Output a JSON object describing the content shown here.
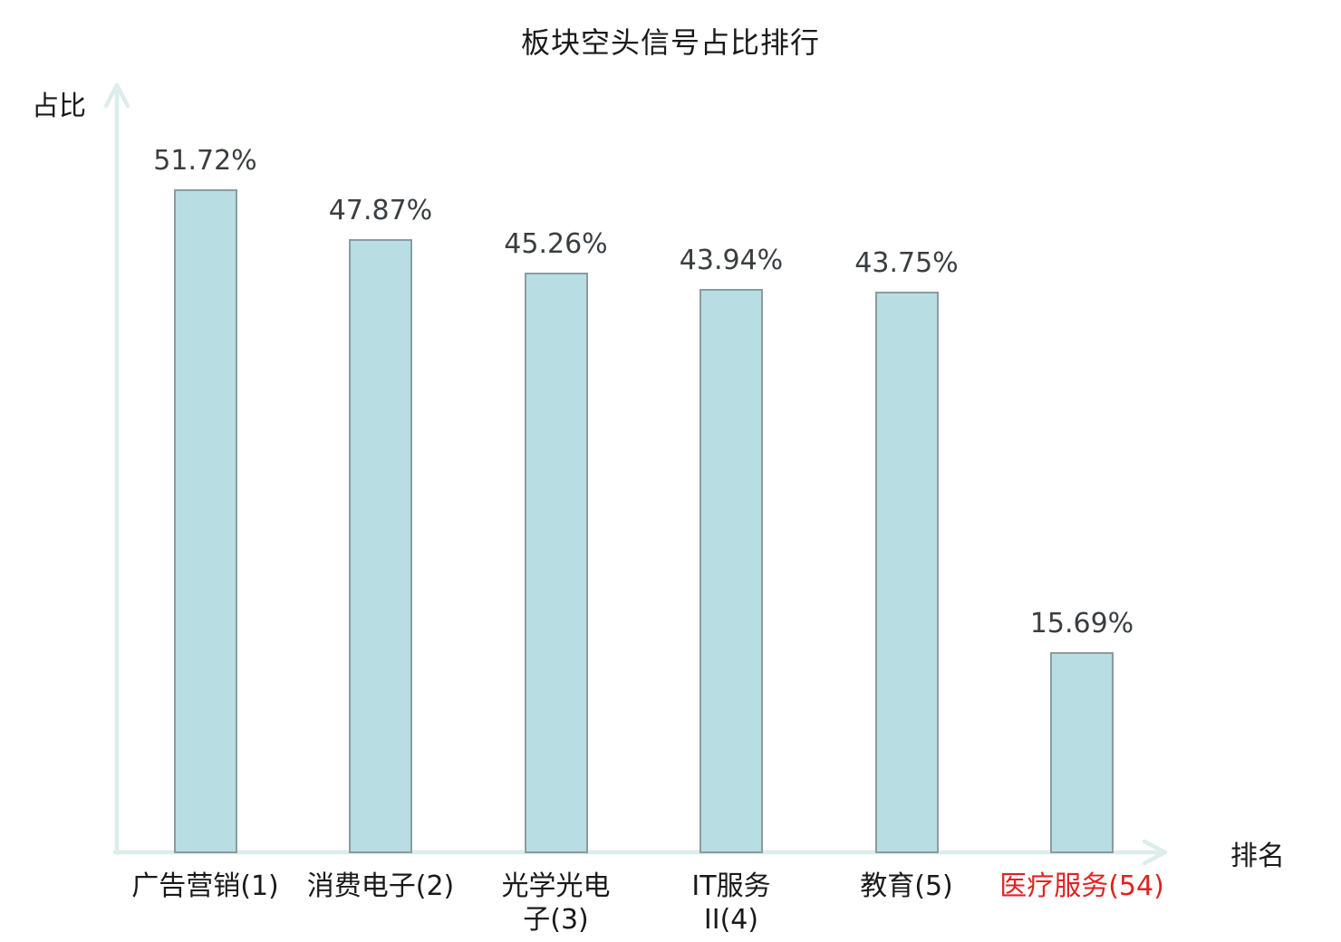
{
  "chart_data": {
    "type": "bar",
    "title": "板块空头信号占比排行",
    "xlabel": "排名",
    "ylabel": "占比",
    "categories": [
      "广告营销(1)",
      "消费电子(2)",
      "光学光电子(3)",
      "IT服务II(4)",
      "教育(5)",
      "医疗服务(54)"
    ],
    "category_display": [
      "广告营销(1)",
      "消费电子(2)",
      "光学光电\n子(3)",
      "IT服务\nII(4)",
      "教育(5)",
      "医疗服务(54)"
    ],
    "values": [
      51.72,
      47.87,
      45.26,
      43.94,
      43.75,
      15.69
    ],
    "value_labels": [
      "51.72%",
      "47.87%",
      "45.26%",
      "43.94%",
      "43.75%",
      "15.69%"
    ],
    "highlight_index": 5,
    "ylim": [
      0,
      60
    ],
    "grid": false,
    "legend": "none",
    "axis_arrows": true,
    "colors": {
      "bar_fill": "#b8dde2",
      "bar_border": "#8a9c9f",
      "axis": "#dcedeb",
      "value_text": "#3a3e41",
      "category_text": "#1a1a1a",
      "highlight_text": "#e02222",
      "title_text": "#1a1a1a"
    }
  }
}
